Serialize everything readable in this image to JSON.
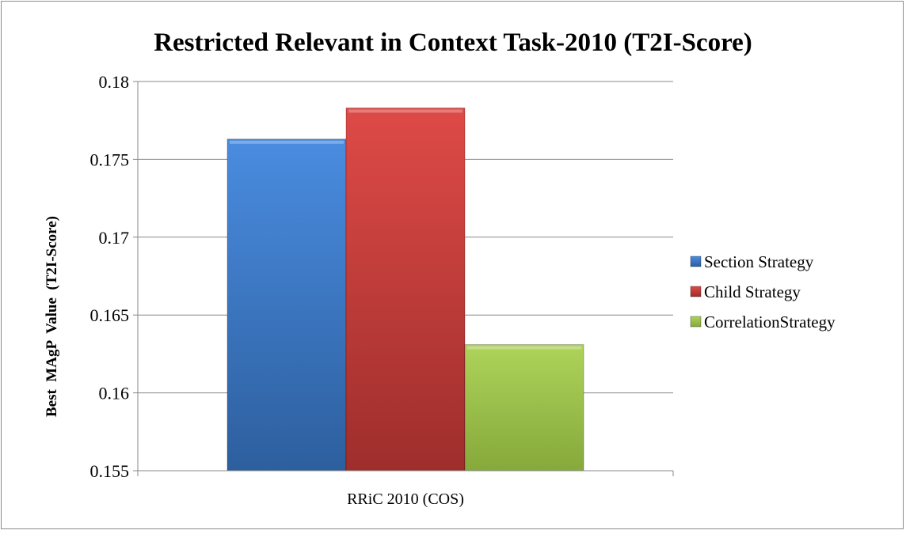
{
  "chart_data": {
    "type": "bar",
    "title": "Restricted Relevant in Context Task-2010 (T2I-Score)",
    "xlabel": "",
    "ylabel": "Best  MAgP  Value  (T2I-Score)",
    "categories": [
      "RRiC 2010 (COS)"
    ],
    "series": [
      {
        "name": "Section Strategy",
        "values": [
          0.1763
        ],
        "color": "#3f7fd0"
      },
      {
        "name": "Child Strategy",
        "values": [
          0.1783
        ],
        "color": "#d14340"
      },
      {
        "name": "CorrelationStrategy",
        "values": [
          0.1631
        ],
        "color": "#9fc54e"
      }
    ],
    "ylim": [
      0.155,
      0.18
    ],
    "yticks": [
      "0.155",
      "0.16",
      "0.165",
      "0.17",
      "0.175",
      "0.18"
    ],
    "grid": true,
    "legend_position": "right"
  }
}
